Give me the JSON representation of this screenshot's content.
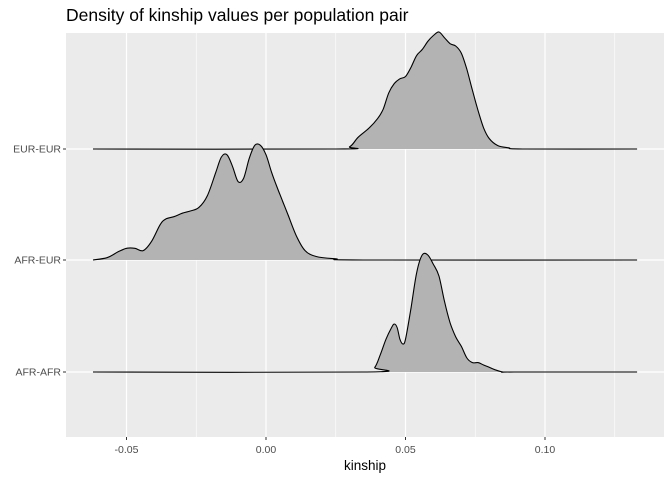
{
  "chart_data": {
    "type": "ridgeline",
    "title": "Density of kinship values per population pair",
    "xlabel": "kinship",
    "ylabel": "",
    "xlim": [
      -0.07,
      0.14
    ],
    "x_ticks": [
      -0.05,
      0.0,
      0.05,
      0.1
    ],
    "x_tick_labels": [
      "-0.05",
      "0.00",
      "0.05",
      "0.10"
    ],
    "categories": [
      "AFR-AFR",
      "AFR-EUR",
      "EUR-EUR"
    ],
    "baseline_range": [
      -0.062,
      0.133
    ],
    "grid": true,
    "fill_color": "#b3b3b3",
    "panel_color": "#ebebeb",
    "series": [
      {
        "name": "EUR-EUR",
        "x": [
          -0.062,
          0.025,
          0.03,
          0.033,
          0.037,
          0.04,
          0.042,
          0.044,
          0.046,
          0.048,
          0.05,
          0.052,
          0.054,
          0.056,
          0.058,
          0.06,
          0.062,
          0.064,
          0.066,
          0.068,
          0.07,
          0.072,
          0.074,
          0.076,
          0.078,
          0.08,
          0.083,
          0.087,
          0.092,
          0.133
        ],
        "density": [
          0.0,
          0.0,
          0.02,
          0.1,
          0.18,
          0.26,
          0.34,
          0.48,
          0.56,
          0.6,
          0.62,
          0.7,
          0.8,
          0.85,
          0.92,
          0.97,
          1.0,
          0.95,
          0.9,
          0.88,
          0.82,
          0.68,
          0.5,
          0.33,
          0.18,
          0.09,
          0.03,
          0.01,
          0.0,
          0.0
        ]
      },
      {
        "name": "AFR-EUR",
        "x": [
          -0.062,
          -0.057,
          -0.053,
          -0.05,
          -0.047,
          -0.044,
          -0.041,
          -0.038,
          -0.036,
          -0.033,
          -0.03,
          -0.027,
          -0.024,
          -0.021,
          -0.018,
          -0.016,
          -0.014,
          -0.012,
          -0.01,
          -0.008,
          -0.006,
          -0.004,
          -0.002,
          0.0,
          0.002,
          0.004,
          0.006,
          0.008,
          0.011,
          0.014,
          0.018,
          0.025,
          0.035,
          0.133
        ],
        "density": [
          0.0,
          0.02,
          0.07,
          0.1,
          0.1,
          0.08,
          0.16,
          0.3,
          0.35,
          0.37,
          0.4,
          0.42,
          0.45,
          0.55,
          0.75,
          0.88,
          0.9,
          0.8,
          0.67,
          0.7,
          0.87,
          0.98,
          0.98,
          0.9,
          0.75,
          0.62,
          0.5,
          0.38,
          0.2,
          0.08,
          0.03,
          0.01,
          0.0,
          0.0
        ]
      },
      {
        "name": "AFR-AFR",
        "x": [
          -0.062,
          0.036,
          0.039,
          0.041,
          0.043,
          0.045,
          0.046,
          0.047,
          0.048,
          0.049,
          0.05,
          0.052,
          0.054,
          0.056,
          0.058,
          0.06,
          0.062,
          0.064,
          0.066,
          0.068,
          0.07,
          0.072,
          0.074,
          0.076,
          0.078,
          0.08,
          0.082,
          0.085,
          0.089,
          0.133
        ],
        "density": [
          0.0,
          0.0,
          0.04,
          0.15,
          0.28,
          0.38,
          0.41,
          0.38,
          0.28,
          0.24,
          0.28,
          0.55,
          0.85,
          1.0,
          1.0,
          0.92,
          0.82,
          0.6,
          0.42,
          0.3,
          0.22,
          0.12,
          0.08,
          0.08,
          0.06,
          0.04,
          0.02,
          0.0,
          0.0,
          0.0
        ]
      }
    ]
  }
}
